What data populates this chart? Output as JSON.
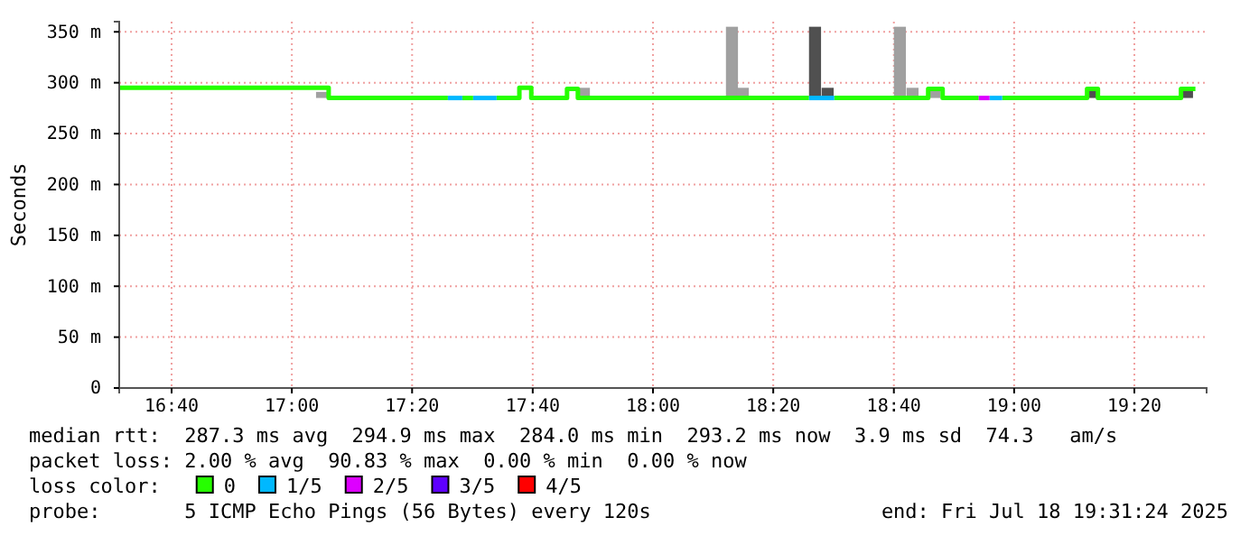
{
  "chart_data": {
    "type": "line",
    "ylabel": "Seconds",
    "xlim": [
      16.522,
      19.533
    ],
    "xticks": [
      {
        "value": 16.667,
        "label": "16:40"
      },
      {
        "value": 17,
        "label": "17:00"
      },
      {
        "value": 17.333,
        "label": "17:20"
      },
      {
        "value": 17.667,
        "label": "17:40"
      },
      {
        "value": 18,
        "label": "18:00"
      },
      {
        "value": 18.333,
        "label": "18:20"
      },
      {
        "value": 18.667,
        "label": "18:40"
      },
      {
        "value": 19,
        "label": "19:00"
      },
      {
        "value": 19.333,
        "label": "19:20"
      }
    ],
    "ylim": [
      0,
      360
    ],
    "yticks": [
      0,
      {
        "value": 50,
        "label": "50 m"
      },
      {
        "value": 100,
        "label": "100 m"
      },
      {
        "value": 150,
        "label": "150 m"
      },
      {
        "value": 200,
        "label": "200 m"
      },
      {
        "value": 250,
        "label": "250 m"
      },
      {
        "value": 300,
        "label": "300 m"
      },
      {
        "value": 350,
        "label": "350 m"
      }
    ],
    "grid": true,
    "legend": "bottom",
    "legend_title": "loss color:",
    "series": [
      {
        "type": "bar",
        "color": "#a0a0a0",
        "x": [
          17.067,
          17.792,
          18.202,
          18.232,
          18.667,
          18.702,
          18.762
        ],
        "base": [
          285,
          286,
          285,
          285,
          285,
          285,
          285
        ],
        "values": [
          6,
          9,
          70,
          10,
          70,
          10,
          7
        ]
      },
      {
        "type": "bar",
        "color": "#505050",
        "x": [
          18.432,
          18.467,
          19.202,
          19.462
        ],
        "base": [
          285,
          285,
          285,
          285
        ],
        "values": [
          70,
          10,
          8,
          8
        ]
      },
      {
        "name": "0",
        "color": "#26ff00",
        "x": [
          16.522,
          17.102,
          17.102,
          17.432
        ],
        "values": [
          295,
          295,
          285,
          285
        ]
      },
      {
        "color": "#26ff00",
        "x": [
          17.472,
          17.502
        ],
        "values": [
          285,
          285
        ]
      },
      {
        "color": "#26ff00",
        "x": [
          17.567,
          17.63,
          17.63,
          17.663,
          17.663,
          17.762,
          17.762,
          17.792,
          17.792,
          18.432
        ],
        "values": [
          285,
          285,
          295,
          295,
          285,
          285,
          294,
          294,
          285,
          285
        ]
      },
      {
        "color": "#26ff00",
        "x": [
          18.502,
          18.762,
          18.762,
          18.802,
          18.802,
          18.902
        ],
        "values": [
          285,
          285,
          294,
          294,
          285,
          285
        ]
      },
      {
        "color": "#26ff00",
        "x": [
          18.967,
          19.202,
          19.202,
          19.232,
          19.232,
          19.462,
          19.462,
          19.502
        ],
        "values": [
          285,
          285,
          294,
          294,
          285,
          285,
          294,
          294
        ]
      },
      {
        "name": "1/5",
        "color": "#00b8ff",
        "x": [
          17.432,
          17.472
        ],
        "values": [
          285,
          285
        ]
      },
      {
        "color": "#00b8ff",
        "x": [
          17.502,
          17.567
        ],
        "values": [
          285,
          285
        ]
      },
      {
        "color": "#00b8ff",
        "x": [
          18.432,
          18.502
        ],
        "values": [
          285,
          285
        ]
      },
      {
        "color": "#00b8ff",
        "x": [
          18.932,
          18.967
        ],
        "values": [
          285,
          285
        ]
      },
      {
        "name": "2/5",
        "color": "#dd00ff",
        "x": [
          18.902,
          18.932
        ],
        "values": [
          285,
          285
        ]
      },
      {
        "name": "3/5",
        "color": "#5e00ff"
      },
      {
        "name": "4/5",
        "color": "#ff0000"
      }
    ],
    "annotations": [
      "median rtt:  287.3 ms avg  294.9 ms max  284.0 ms min  293.2 ms now  3.9 ms sd  74.3   am/s",
      "packet loss: 2.00 % avg  90.83 % max  0.00 % min  0.00 % now",
      "probe:       5 ICMP Echo Pings (56 Bytes) every 120s",
      "end: Fri Jul 18 19:31:24 2025"
    ]
  }
}
